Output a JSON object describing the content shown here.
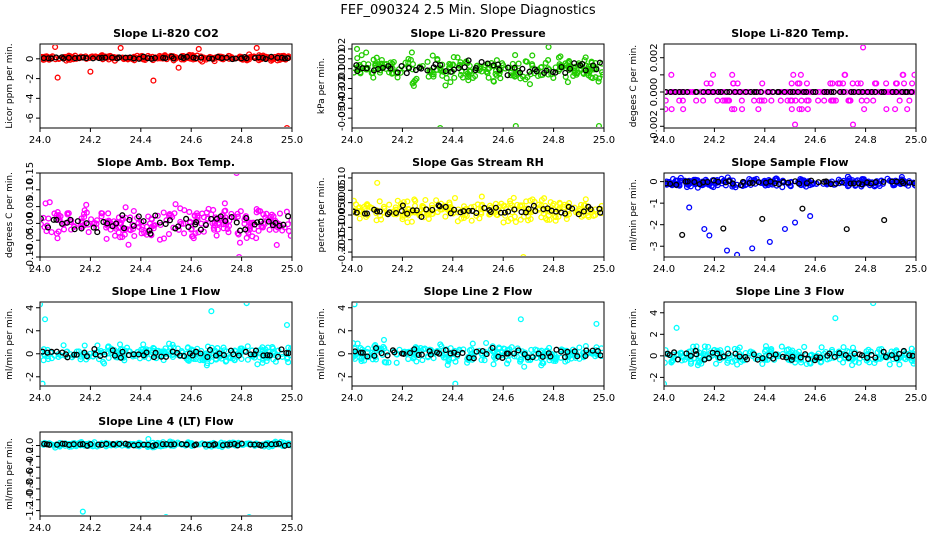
{
  "figure": {
    "title": "FEF_090324  2.5 Min. Slope Diagnostics"
  },
  "chart_data": [
    {
      "id": "co2",
      "type": "scatter",
      "title": "Slope Li-820 CO2",
      "ylabel": "Licor ppm per min.",
      "xlim": [
        24.0,
        25.0
      ],
      "ylim": [
        -7,
        1.5
      ],
      "yticks": [
        -6,
        -4,
        -2,
        0
      ],
      "xticks": [
        24.0,
        24.2,
        24.4,
        24.6,
        24.8,
        25.0
      ],
      "xtick_labels": [
        "24.0",
        "24.2",
        "24.4",
        "24.6",
        "24.8",
        "25.0"
      ],
      "ytick_labels": [
        "-6",
        "-4",
        "-2",
        "0"
      ],
      "color": "#ff0000",
      "center": 0.1,
      "spread": 0.25,
      "outliers": [
        [
          24.06,
          1.2
        ],
        [
          24.07,
          -1.9
        ],
        [
          24.32,
          1.1
        ],
        [
          24.45,
          -2.2
        ],
        [
          24.63,
          1.0
        ],
        [
          24.86,
          1.1
        ],
        [
          24.98,
          -7.0
        ],
        [
          24.2,
          -1.3
        ],
        [
          24.55,
          -0.9
        ]
      ]
    },
    {
      "id": "pressure",
      "type": "scatter",
      "title": "Slope Li-820 Pressure",
      "ylabel": "kPa per min.",
      "xlim": [
        24.0,
        25.0
      ],
      "ylim": [
        -0.06,
        0.025
      ],
      "yticks": [
        -0.05,
        -0.04,
        -0.03,
        -0.02,
        -0.01,
        0.0,
        0.01,
        0.02
      ],
      "xticks": [
        24.0,
        24.2,
        24.4,
        24.6,
        24.8,
        25.0
      ],
      "xtick_labels": [
        "24.0",
        "24.2",
        "24.4",
        "24.6",
        "24.8",
        "25.0"
      ],
      "ytick_labels": [
        "-0.05",
        "-0.04",
        "-0.03",
        "-0.02",
        "-0.01",
        "0.00",
        "0.01",
        "0.02"
      ],
      "color": "#22cc00",
      "center": 0.0,
      "spread": 0.012,
      "outliers": [
        [
          24.02,
          0.02
        ],
        [
          24.35,
          -0.06
        ],
        [
          24.65,
          -0.058
        ],
        [
          24.98,
          -0.058
        ],
        [
          24.78,
          0.022
        ]
      ]
    },
    {
      "id": "temp",
      "type": "scatter",
      "title": "Slope Li-820 Temp.",
      "ylabel": "degees C per min.",
      "xlim": [
        24.0,
        25.0
      ],
      "ylim": [
        -0.0021,
        0.0028
      ],
      "yticks": [
        -0.002,
        -0.001,
        0.0,
        0.001,
        0.002
      ],
      "xticks": [
        24.0,
        24.2,
        24.4,
        24.6,
        24.8,
        25.0
      ],
      "xtick_labels": [
        "24.0",
        "24.2",
        "24.4",
        "24.6",
        "24.8",
        "25.0"
      ],
      "ytick_labels": [
        "-0.002",
        "",
        "0.000",
        "",
        "0.002"
      ],
      "color": "#ff00ff",
      "center": 0.0,
      "spread": 0.0,
      "quantized": 0.0005,
      "outliers": [
        [
          24.79,
          0.0026
        ],
        [
          24.52,
          -0.0019
        ],
        [
          24.75,
          -0.0019
        ]
      ]
    },
    {
      "id": "box_temp",
      "type": "scatter",
      "title": "Slope Amb. Box Temp.",
      "ylabel": "degrees C per min.",
      "xlim": [
        24.0,
        25.0
      ],
      "ylim": [
        -0.1,
        0.15
      ],
      "yticks": [
        -0.1,
        -0.05,
        0.0,
        0.05,
        0.1,
        0.15
      ],
      "xticks": [
        24.0,
        24.2,
        24.4,
        24.6,
        24.8,
        25.0
      ],
      "xtick_labels": [
        "24.0",
        "24.2",
        "24.4",
        "24.6",
        "24.8",
        "25.0"
      ],
      "ytick_labels": [
        "-0.10",
        "-0.05",
        "0.00",
        "0.05",
        "0.10",
        "0.15"
      ],
      "color": "#ff00ff",
      "center": 0.0,
      "spread": 0.05,
      "outliers": [
        [
          24.78,
          0.15
        ],
        [
          24.79,
          -0.1
        ]
      ]
    },
    {
      "id": "rh",
      "type": "scatter",
      "title": "Slope Gas Stream RH",
      "ylabel": "percent per min.",
      "xlim": [
        24.0,
        25.0
      ],
      "ylim": [
        -0.22,
        0.12
      ],
      "yticks": [
        -0.2,
        -0.15,
        -0.1,
        -0.05,
        0.0,
        0.05,
        0.1
      ],
      "xticks": [
        24.0,
        24.2,
        24.4,
        24.6,
        24.8,
        25.0
      ],
      "xtick_labels": [
        "24.0",
        "24.2",
        "24.4",
        "24.6",
        "24.8",
        "25.0"
      ],
      "ytick_labels": [
        "-0.20",
        "-0.15",
        "-0.10",
        "-0.05",
        "0.00",
        "0.05",
        "0.10"
      ],
      "color": "#ffff00",
      "center": -0.03,
      "spread": 0.04,
      "outliers": [
        [
          24.68,
          -0.22
        ],
        [
          24.1,
          0.08
        ]
      ]
    },
    {
      "id": "sample_flow",
      "type": "scatter",
      "title": "Slope Sample Flow",
      "ylabel": "ml/min per min.",
      "xlim": [
        24.0,
        25.0
      ],
      "ylim": [
        -3.5,
        0.4
      ],
      "yticks": [
        -3,
        -2,
        -1,
        0
      ],
      "xticks": [
        24.0,
        24.2,
        24.4,
        24.6,
        24.8,
        25.0
      ],
      "xtick_labels": [
        "24.0",
        "24.2",
        "24.4",
        "24.6",
        "24.8",
        "25.0"
      ],
      "ytick_labels": [
        "-3",
        "-2",
        "-1",
        "0"
      ],
      "color": "#0000ff",
      "center": -0.05,
      "spread": 0.2,
      "outliers": [
        [
          24.16,
          -2.2
        ],
        [
          24.18,
          -2.5
        ],
        [
          24.25,
          -3.2
        ],
        [
          24.29,
          -3.4
        ],
        [
          24.35,
          -3.1
        ],
        [
          24.42,
          -2.8
        ],
        [
          24.48,
          -2.2
        ],
        [
          24.52,
          -1.9
        ],
        [
          24.1,
          -1.2
        ],
        [
          24.58,
          -1.6
        ]
      ]
    },
    {
      "id": "line1",
      "type": "scatter",
      "title": "Slope Line 1 Flow",
      "ylabel": "ml/min per min.",
      "xlim": [
        24.0,
        25.0
      ],
      "ylim": [
        -2.8,
        4.5
      ],
      "yticks": [
        -2,
        0,
        2,
        4
      ],
      "xticks": [
        24.0,
        24.2,
        24.4,
        24.6,
        24.8,
        25.0
      ],
      "xtick_labels": [
        "24.0",
        "24.2",
        "24.4",
        "24.6",
        "24.8",
        "25.0"
      ],
      "ytick_labels": [
        "-2",
        "0",
        "2",
        "4"
      ],
      "color": "#00ffff",
      "center": 0.0,
      "spread": 0.7,
      "outliers": [
        [
          24.0,
          4.3
        ],
        [
          24.02,
          3.0
        ],
        [
          24.68,
          3.7
        ],
        [
          24.82,
          4.4
        ],
        [
          24.98,
          2.5
        ],
        [
          24.01,
          -2.6
        ]
      ]
    },
    {
      "id": "line2",
      "type": "scatter",
      "title": "Slope Line 2 Flow",
      "ylabel": "ml/min per min.",
      "xlim": [
        24.0,
        25.0
      ],
      "ylim": [
        -2.8,
        4.5
      ],
      "yticks": [
        -2,
        0,
        2,
        4
      ],
      "xticks": [
        24.0,
        24.2,
        24.4,
        24.6,
        24.8,
        25.0
      ],
      "xtick_labels": [
        "24.0",
        "24.2",
        "24.4",
        "24.6",
        "24.8",
        "25.0"
      ],
      "ytick_labels": [
        "-2",
        "0",
        "2",
        "4"
      ],
      "color": "#00ffff",
      "center": 0.0,
      "spread": 0.8,
      "outliers": [
        [
          24.01,
          4.3
        ],
        [
          24.67,
          3.0
        ],
        [
          24.97,
          2.6
        ],
        [
          24.41,
          -2.6
        ]
      ]
    },
    {
      "id": "line3",
      "type": "scatter",
      "title": "Slope Line 3 Flow",
      "ylabel": "ml/min per min.",
      "xlim": [
        24.0,
        25.0
      ],
      "ylim": [
        -2.8,
        5.0
      ],
      "yticks": [
        -2,
        0,
        2,
        4
      ],
      "xticks": [
        24.0,
        24.2,
        24.4,
        24.6,
        24.8,
        25.0
      ],
      "xtick_labels": [
        "24.0",
        "24.2",
        "24.4",
        "24.6",
        "24.8",
        "25.0"
      ],
      "ytick_labels": [
        "-2",
        "0",
        "2",
        "4"
      ],
      "color": "#00ffff",
      "center": 0.0,
      "spread": 0.8,
      "outliers": [
        [
          24.83,
          4.9
        ],
        [
          24.68,
          3.5
        ],
        [
          24.05,
          2.6
        ],
        [
          24.0,
          -2.6
        ]
      ]
    },
    {
      "id": "line4",
      "type": "scatter",
      "title": "Slope Line 4 (LT) Flow",
      "ylabel": "ml/min per min.",
      "xlim": [
        24.0,
        25.0
      ],
      "ylim": [
        -1.3,
        0.25
      ],
      "yticks": [
        -1.2,
        -1.0,
        -0.8,
        -0.6,
        -0.4,
        -0.2,
        0.0
      ],
      "xticks": [
        24.0,
        24.2,
        24.4,
        24.6,
        24.8,
        25.0
      ],
      "xtick_labels": [
        "24.0",
        "24.2",
        "24.4",
        "24.6",
        "24.8",
        "25.0"
      ],
      "ytick_labels": [
        "-1.2",
        "-1.0",
        "-0.8",
        "-0.6",
        "-0.4",
        "-0.2",
        "0.0"
      ],
      "color": "#00ffff",
      "center": 0.02,
      "spread": 0.04,
      "outliers": [
        [
          24.17,
          -1.22
        ],
        [
          24.5,
          -1.32
        ],
        [
          24.83,
          -1.32
        ],
        [
          24.43,
          0.12
        ]
      ]
    }
  ]
}
